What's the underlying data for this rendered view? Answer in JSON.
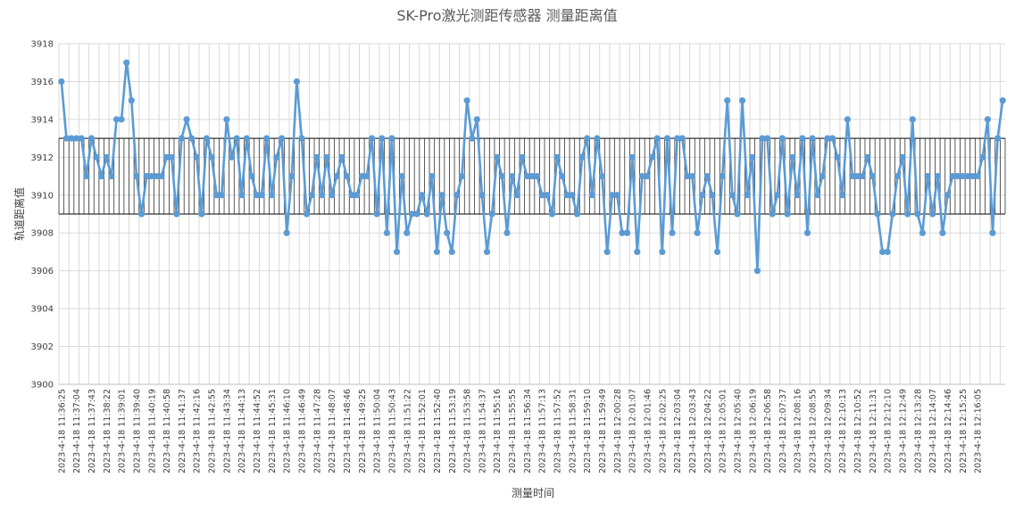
{
  "chart_data": {
    "type": "line",
    "title": "SK-Pro激光测距传感器 测量距离值",
    "xlabel": "测量时间",
    "ylabel": "轨道距离值",
    "ylim": [
      3900,
      3918
    ],
    "ytick_step": 2,
    "ytick_labels": [
      "3900",
      "3902",
      "3904",
      "3906",
      "3908",
      "3910",
      "3912",
      "3914",
      "3916",
      "3918"
    ],
    "band": [
      3909,
      3913
    ],
    "grid": true,
    "colors": {
      "series": "#5b9bd5",
      "grid": "#d9d9d9",
      "band_line": "#000000"
    },
    "x_tick_labels": [
      "2023-4-18 11:36:25",
      "2023-4-18 11:37:04",
      "2023-4-18 11:37:43",
      "2023-4-18 11:38:22",
      "2023-4-18 11:39:01",
      "2023-4-18 11:39:40",
      "2023-4-18 11:40:19",
      "2023-4-18 11:40:58",
      "2023-4-18 11:41:37",
      "2023-4-18 11:42:16",
      "2023-4-18 11:42:55",
      "2023-4-18 11:43:34",
      "2023-4-18 11:44:13",
      "2023-4-18 11:44:52",
      "2023-4-18 11:45:31",
      "2023-4-18 11:46:10",
      "2023-4-18 11:46:49",
      "2023-4-18 11:47:28",
      "2023-4-18 11:48:07",
      "2023-4-18 11:48:46",
      "2023-4-18 11:49:25",
      "2023-4-18 11:50:04",
      "2023-4-18 11:50:43",
      "2023-4-18 11:51:22",
      "2023-4-18 11:52:01",
      "2023-4-18 11:52:40",
      "2023-4-18 11:53:19",
      "2023-4-18 11:53:58",
      "2023-4-18 11:54:37",
      "2023-4-18 11:55:16",
      "2023-4-18 11:55:55",
      "2023-4-18 11:56:34",
      "2023-4-18 11:57:13",
      "2023-4-18 11:57:52",
      "2023-4-18 11:58:31",
      "2023-4-18 11:59:10",
      "2023-4-18 11:59:49",
      "2023-4-18 12:00:28",
      "2023-4-18 12:01:07",
      "2023-4-18 12:01:46",
      "2023-4-18 12:02:25",
      "2023-4-18 12:03:04",
      "2023-4-18 12:03:43",
      "2023-4-18 12:04:22",
      "2023-4-18 12:05:01",
      "2023-4-18 12:05:40",
      "2023-4-18 12:06:19",
      "2023-4-18 12:06:58",
      "2023-4-18 12:07:37",
      "2023-4-18 12:08:16",
      "2023-4-18 12:08:55",
      "2023-4-18 12:09:34",
      "2023-4-18 12:10:13",
      "2023-4-18 12:10:52",
      "2023-4-18 12:11:31",
      "2023-4-18 12:12:10",
      "2023-4-18 12:12:49",
      "2023-4-18 12:13:28",
      "2023-4-18 12:14:07",
      "2023-4-18 12:14:46",
      "2023-4-18 12:15:25",
      "2023-4-18 12:16:05"
    ],
    "series": [
      {
        "name": "轨道距离值",
        "values": [
          3916,
          3913,
          3913,
          3913,
          3913,
          3911,
          3913,
          3912,
          3911,
          3912,
          3911,
          3914,
          3914,
          3917,
          3915,
          3911,
          3909,
          3911,
          3911,
          3911,
          3911,
          3912,
          3912,
          3909,
          3913,
          3914,
          3913,
          3912,
          3909,
          3913,
          3912,
          3910,
          3910,
          3914,
          3912,
          3913,
          3910,
          3913,
          3911,
          3910,
          3910,
          3913,
          3910,
          3912,
          3913,
          3908,
          3911,
          3916,
          3913,
          3909,
          3910,
          3912,
          3910,
          3912,
          3910,
          3911,
          3912,
          3911,
          3910,
          3910,
          3911,
          3911,
          3913,
          3909,
          3913,
          3908,
          3913,
          3907,
          3911,
          3908,
          3909,
          3909,
          3910,
          3909,
          3911,
          3907,
          3910,
          3908,
          3907,
          3910,
          3911,
          3915,
          3913,
          3914,
          3910,
          3907,
          3909,
          3912,
          3911,
          3908,
          3911,
          3910,
          3912,
          3911,
          3911,
          3911,
          3910,
          3910,
          3909,
          3912,
          3911,
          3910,
          3910,
          3909,
          3912,
          3913,
          3910,
          3913,
          3911,
          3907,
          3910,
          3910,
          3908,
          3908,
          3912,
          3907,
          3911,
          3911,
          3912,
          3913,
          3907,
          3913,
          3908,
          3913,
          3913,
          3911,
          3911,
          3908,
          3910,
          3911,
          3910,
          3907,
          3911,
          3915,
          3910,
          3909,
          3915,
          3910,
          3912,
          3906,
          3913,
          3913,
          3909,
          3910,
          3913,
          3909,
          3912,
          3910,
          3913,
          3908,
          3913,
          3910,
          3911,
          3913,
          3913,
          3912,
          3910,
          3914,
          3911,
          3911,
          3911,
          3912,
          3911,
          3909,
          3907,
          3907,
          3909,
          3911,
          3912,
          3909,
          3914,
          3909,
          3908,
          3911,
          3909,
          3911,
          3908,
          3910,
          3911,
          3911,
          3911,
          3911,
          3911,
          3911,
          3912,
          3914,
          3908,
          3913,
          3915
        ]
      }
    ]
  }
}
